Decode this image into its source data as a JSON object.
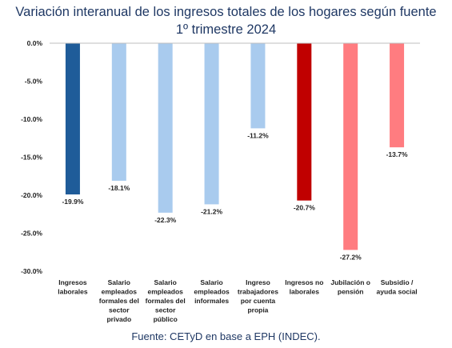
{
  "title_line1": "Variación interanual de los ingresos totales de los hogares según fuente",
  "title_line2": "1º trimestre 2024",
  "source": "Fuente: CETyD en base a EPH (INDEC).",
  "chart_data": {
    "type": "bar",
    "title": "Variación interanual de los ingresos totales de los hogares según fuente 1º trimestre 2024",
    "categories": [
      [
        "Ingresos",
        "laborales"
      ],
      [
        "Salario",
        "empleados",
        "formales del",
        "sector",
        "privado"
      ],
      [
        "Salario",
        "empleados",
        "formales del",
        "sector",
        "público"
      ],
      [
        "Salario",
        "empleados",
        "informales"
      ],
      [
        "Ingreso",
        "trabajadores",
        "por cuenta",
        "propia"
      ],
      [
        "Ingresos no",
        "laborales"
      ],
      [
        "Jubilación o",
        "pensión"
      ],
      [
        "Subsidio /",
        "ayuda social"
      ]
    ],
    "values": [
      -19.9,
      -18.1,
      -22.3,
      -21.2,
      -11.2,
      -20.7,
      -27.2,
      -13.7
    ],
    "value_labels": [
      "-19.9%",
      "-18.1%",
      "-22.3%",
      "-21.2%",
      "-11.2%",
      "-20.7%",
      "-27.2%",
      "-13.7%"
    ],
    "colors": [
      "#1f5c99",
      "#a9cbee",
      "#a9cbee",
      "#a9cbee",
      "#a9cbee",
      "#c00000",
      "#ff7c80",
      "#ff7c80"
    ],
    "ylim": [
      -30,
      0
    ],
    "yticks": [
      0,
      -5,
      -10,
      -15,
      -20,
      -25,
      -30
    ],
    "ytick_labels": [
      "0.0%",
      "-5.0%",
      "-10.0%",
      "-15.0%",
      "-20.0%",
      "-25.0%",
      "-30.0%"
    ],
    "xlabel": "",
    "ylabel": "",
    "grid": false
  }
}
